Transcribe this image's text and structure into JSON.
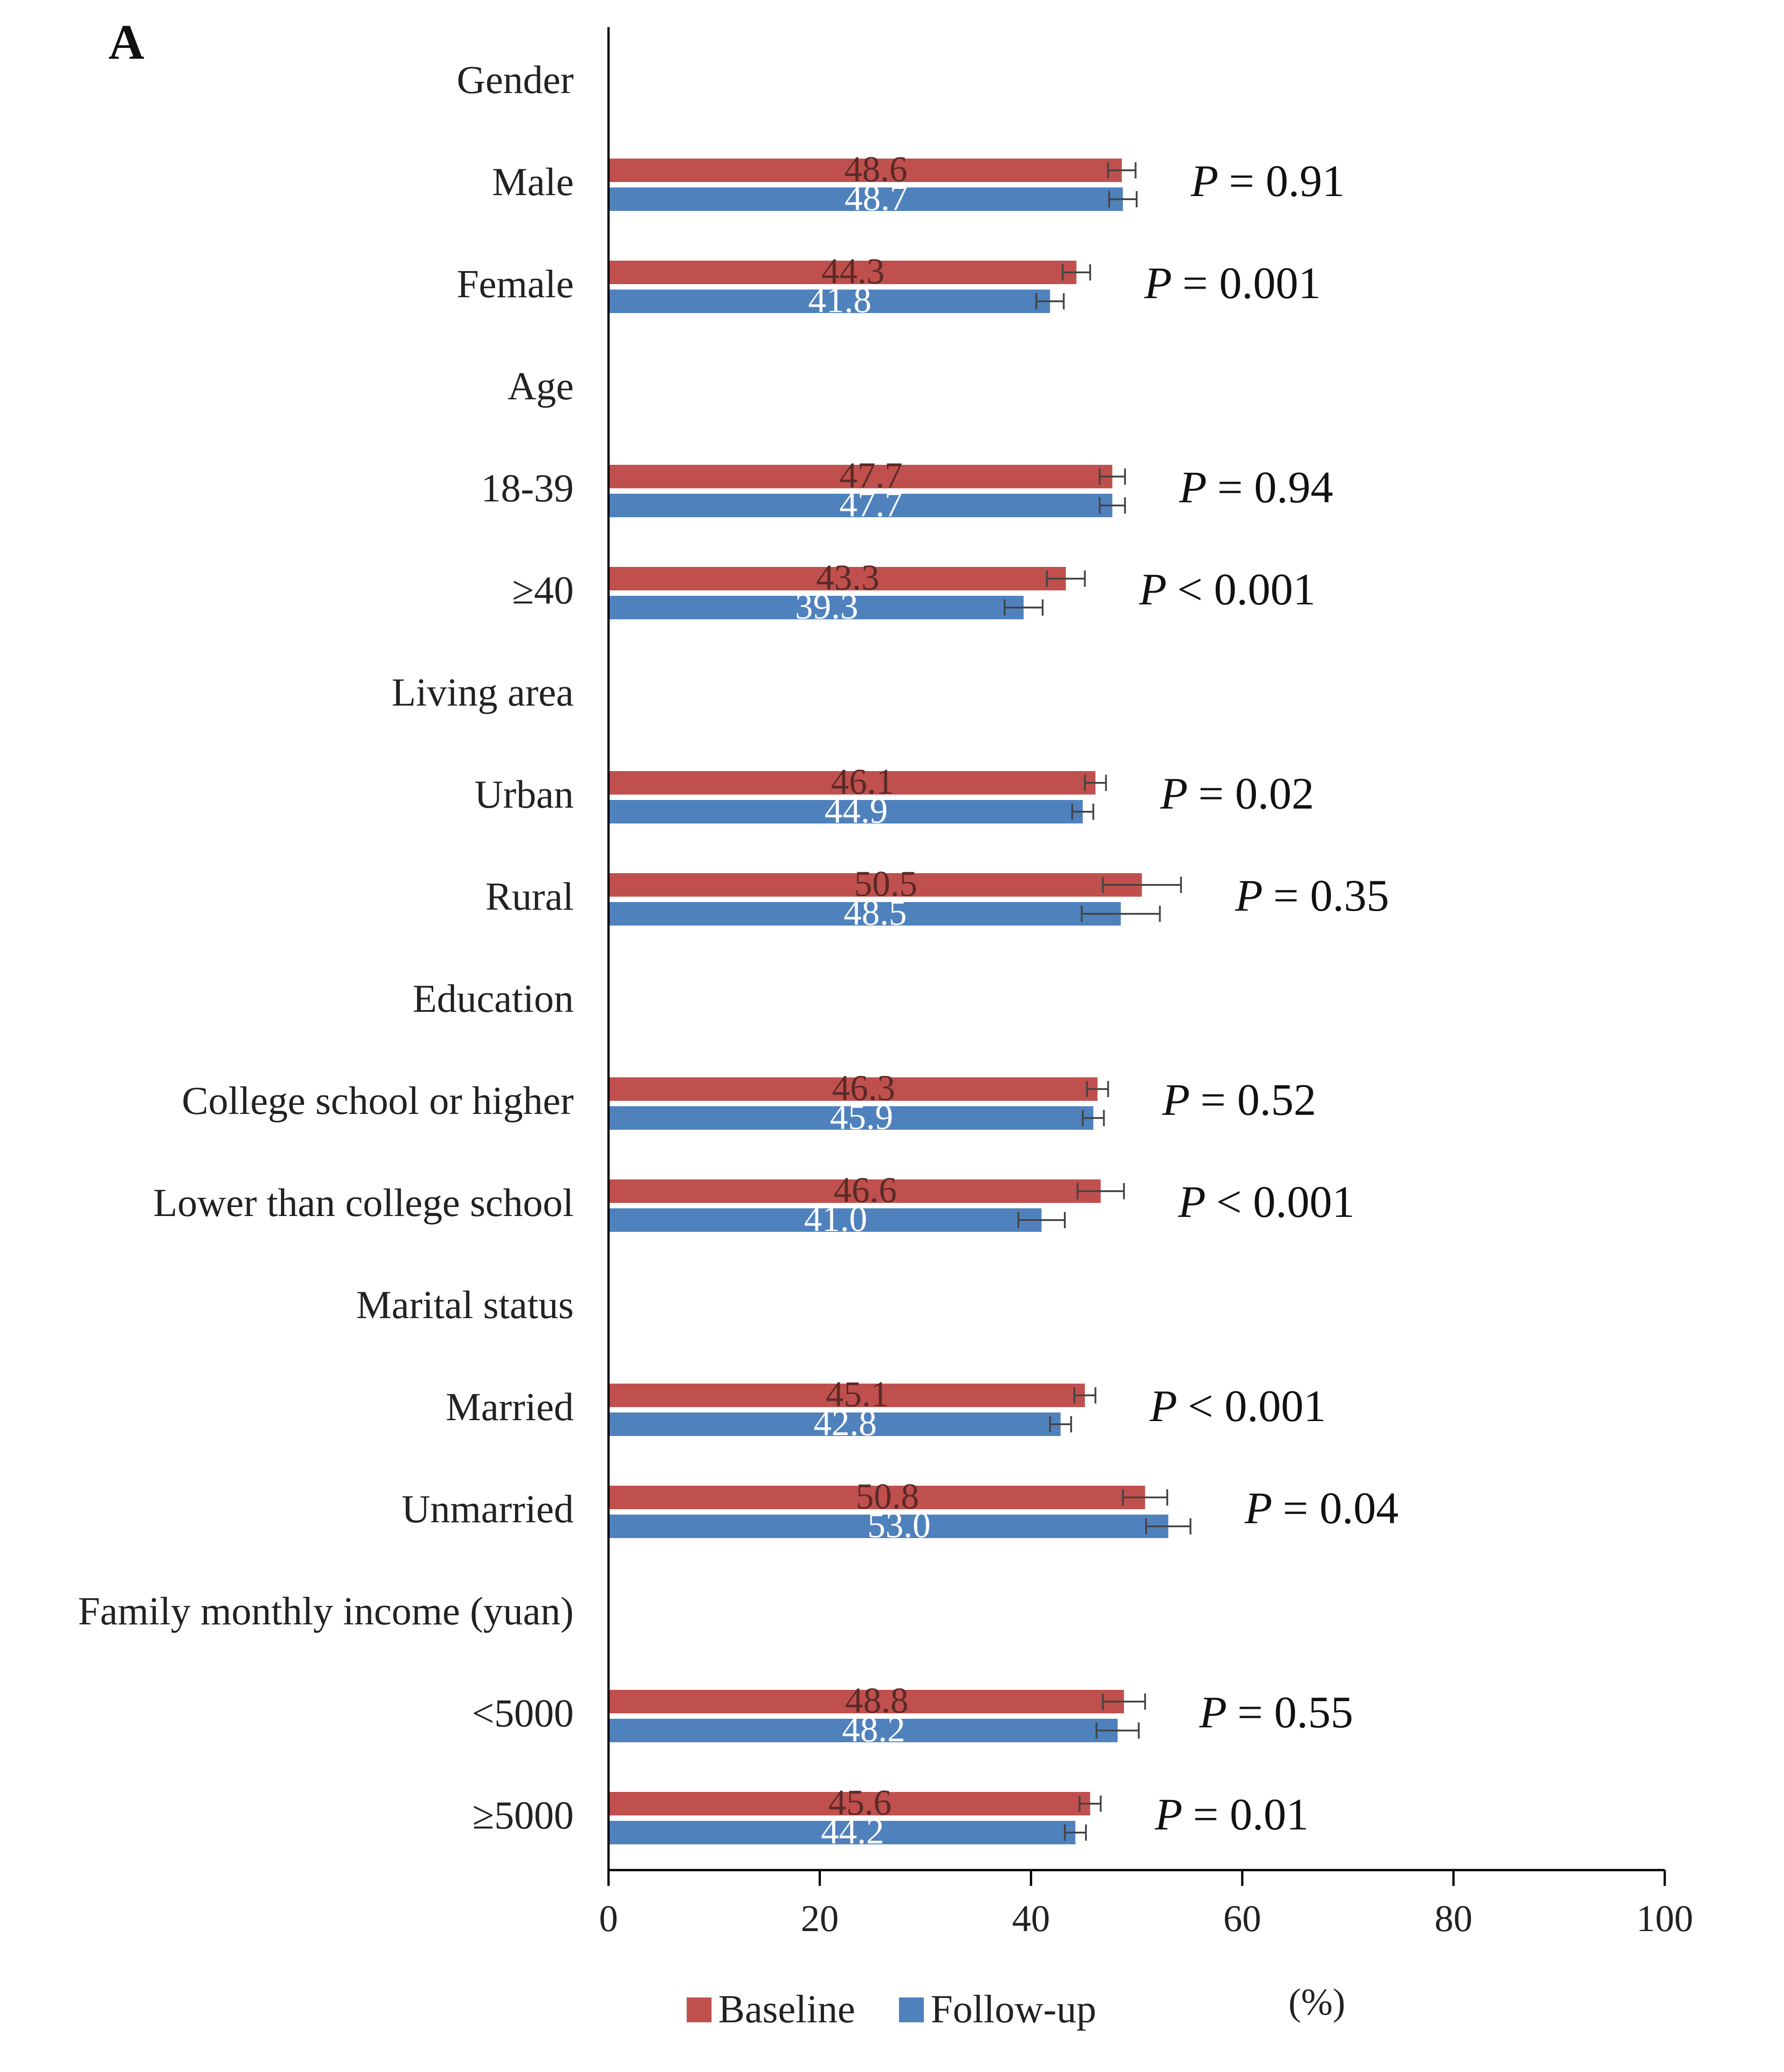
{
  "chart_data": {
    "type": "bar",
    "orientation": "horizontal",
    "panel_label": "A",
    "xlabel": "(%)",
    "xlim": [
      0,
      100
    ],
    "xticks": [
      "0",
      "20",
      "40",
      "60",
      "80",
      "100"
    ],
    "legend_position": "bottom",
    "series": [
      {
        "name": "Baseline",
        "color": "#C0504D"
      },
      {
        "name": "Follow-up",
        "color": "#4F81BD"
      }
    ],
    "groups": [
      {
        "label": "Gender",
        "categories": [
          {
            "label": "Male",
            "baseline": 48.6,
            "followup": 48.7,
            "baseline_text": "48.6",
            "followup_text": "48.7",
            "baseline_err": 1.3,
            "followup_err": 1.3,
            "p_value": "= 0.91"
          },
          {
            "label": "Female",
            "baseline": 44.3,
            "followup": 41.8,
            "baseline_text": "44.3",
            "followup_text": "41.8",
            "baseline_err": 1.3,
            "followup_err": 1.3,
            "p_value": "= 0.001"
          }
        ]
      },
      {
        "label": "Age",
        "categories": [
          {
            "label": "18-39",
            "baseline": 47.7,
            "followup": 47.7,
            "baseline_text": "47.7",
            "followup_text": "47.7",
            "baseline_err": 1.2,
            "followup_err": 1.2,
            "p_value": "= 0.94"
          },
          {
            "label": "≥40",
            "baseline": 43.3,
            "followup": 39.3,
            "baseline_text": "43.3",
            "followup_text": "39.3",
            "baseline_err": 1.8,
            "followup_err": 1.8,
            "p_value": "< 0.001"
          }
        ]
      },
      {
        "label": "Living area",
        "categories": [
          {
            "label": "Urban",
            "baseline": 46.1,
            "followup": 44.9,
            "baseline_text": "46.1",
            "followup_text": "44.9",
            "baseline_err": 1.0,
            "followup_err": 1.0,
            "p_value": "= 0.02"
          },
          {
            "label": "Rural",
            "baseline": 50.5,
            "followup": 48.5,
            "baseline_text": "50.5",
            "followup_text": "48.5",
            "baseline_err": 3.7,
            "followup_err": 3.7,
            "p_value": "= 0.35"
          }
        ]
      },
      {
        "label": "Education",
        "categories": [
          {
            "label": "College school or higher",
            "baseline": 46.3,
            "followup": 45.9,
            "baseline_text": "46.3",
            "followup_text": "45.9",
            "baseline_err": 1.0,
            "followup_err": 1.0,
            "p_value": "= 0.52"
          },
          {
            "label": "Lower than college school",
            "baseline": 46.6,
            "followup": 41.0,
            "baseline_text": "46.6",
            "followup_text": "41.0",
            "baseline_err": 2.2,
            "followup_err": 2.2,
            "p_value": "< 0.001"
          }
        ]
      },
      {
        "label": "Marital status",
        "categories": [
          {
            "label": "Married",
            "baseline": 45.1,
            "followup": 42.8,
            "baseline_text": "45.1",
            "followup_text": "42.8",
            "baseline_err": 1.0,
            "followup_err": 1.0,
            "p_value": "< 0.001"
          },
          {
            "label": "Unmarried",
            "baseline": 50.8,
            "followup": 53.0,
            "baseline_text": "50.8",
            "followup_text": "53.0",
            "baseline_err": 2.1,
            "followup_err": 2.1,
            "p_value": "= 0.04"
          }
        ]
      },
      {
        "label": "Family monthly income (yuan)",
        "categories": [
          {
            "label": "<5000",
            "baseline": 48.8,
            "followup": 48.2,
            "baseline_text": "48.8",
            "followup_text": "48.2",
            "baseline_err": 2.0,
            "followup_err": 2.0,
            "p_value": "= 0.55"
          },
          {
            "label": "≥5000",
            "baseline": 45.6,
            "followup": 44.2,
            "baseline_text": "45.6",
            "followup_text": "44.2",
            "baseline_err": 1.0,
            "followup_err": 1.0,
            "p_value": "= 0.01"
          }
        ]
      }
    ]
  }
}
